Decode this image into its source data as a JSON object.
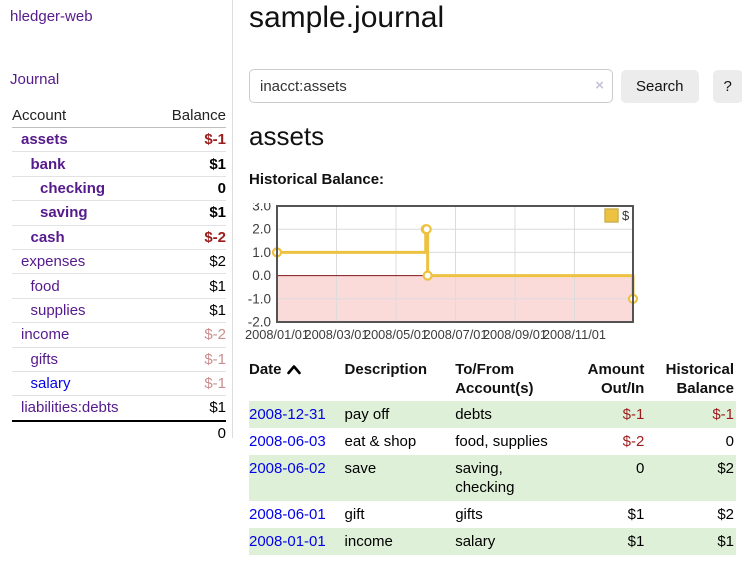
{
  "colors": {
    "link_purple": "#551a8b",
    "link_blue": "#0202e8",
    "negative_dark_red": "#9b1c1c",
    "negative_light_red": "#c98f8f",
    "row_green": "#dff0d8",
    "accent_gold": "#edc240"
  },
  "sidebar": {
    "brand": "hledger-web",
    "nav_journal": "Journal",
    "table": {
      "account_header": "Account",
      "balance_header": "Balance",
      "rows": [
        {
          "name": "assets",
          "depth": 0,
          "bold": true,
          "link": "purple",
          "balance": "$-1",
          "neg": "dark"
        },
        {
          "name": "bank",
          "depth": 1,
          "bold": true,
          "link": "purple",
          "balance": "$1",
          "neg": "none"
        },
        {
          "name": "checking",
          "depth": 2,
          "bold": true,
          "link": "purple",
          "balance": "0",
          "neg": "none"
        },
        {
          "name": "saving",
          "depth": 2,
          "bold": true,
          "link": "purple",
          "balance": "$1",
          "neg": "none"
        },
        {
          "name": "cash",
          "depth": 1,
          "bold": true,
          "link": "purple",
          "balance": "$-2",
          "neg": "dark"
        },
        {
          "name": "expenses",
          "depth": 0,
          "bold": false,
          "link": "purple",
          "balance": "$2",
          "neg": "none"
        },
        {
          "name": "food",
          "depth": 1,
          "bold": false,
          "link": "purple",
          "balance": "$1",
          "neg": "none"
        },
        {
          "name": "supplies",
          "depth": 1,
          "bold": false,
          "link": "purple",
          "balance": "$1",
          "neg": "none"
        },
        {
          "name": "income",
          "depth": 0,
          "bold": false,
          "link": "purple",
          "balance": "$-2",
          "neg": "light"
        },
        {
          "name": "gifts",
          "depth": 1,
          "bold": false,
          "link": "purple",
          "balance": "$-1",
          "neg": "light"
        },
        {
          "name": "salary",
          "depth": 1,
          "bold": false,
          "link": "blue",
          "balance": "$-1",
          "neg": "light"
        },
        {
          "name": "liabilities:debts",
          "depth": 0,
          "bold": false,
          "link": "purple",
          "balance": "$1",
          "neg": "none"
        }
      ],
      "total": "0"
    }
  },
  "header": {
    "title": "sample.journal"
  },
  "search": {
    "value": "inacct:assets",
    "clear_icon": "×",
    "button_label": "Search",
    "help_label": "?"
  },
  "account_page": {
    "heading": "assets",
    "chart_label": "Historical Balance:"
  },
  "chart_data": {
    "type": "line",
    "step": true,
    "title": "Historical Balance",
    "series": [
      {
        "name": "$",
        "color": "#edc240",
        "points": [
          [
            "2008-01-01",
            1
          ],
          [
            "2008-06-01",
            2
          ],
          [
            "2008-06-02",
            2
          ],
          [
            "2008-06-03",
            0
          ],
          [
            "2008-12-31",
            -1
          ]
        ]
      }
    ],
    "ylim": [
      -2,
      3
    ],
    "yticks": [
      3.0,
      2.0,
      1.0,
      0.0,
      -1.0,
      -2.0
    ],
    "xticks": [
      "2008/01/01",
      "2008/03/01",
      "2008/05/01",
      "2008/07/01",
      "2008/09/01",
      "2008/11/01"
    ],
    "grid": true,
    "legend_position": "top-right",
    "legend_label": "$",
    "negative_region_fill": "#fbdada",
    "zero_line_color": "#801515",
    "border_color": "#545454",
    "gridline_color": "#dcdcdc",
    "tick_label_color": "#3c3c3c"
  },
  "register": {
    "columns": {
      "date": [
        "Date"
      ],
      "description": [
        "Description"
      ],
      "account": [
        "To/From",
        "Account(s)"
      ],
      "amount": [
        "Amount",
        "Out/In"
      ],
      "balance": [
        "Historical",
        "Balance"
      ]
    },
    "sort_icon": "chevron-up",
    "rows": [
      {
        "date": "2008-12-31",
        "description": "pay off",
        "accounts": [
          "debts"
        ],
        "amount": "$-1",
        "amount_neg": true,
        "balance": "$-1",
        "balance_neg": true,
        "shaded": true
      },
      {
        "date": "2008-06-03",
        "description": "eat & shop",
        "accounts": [
          "food, supplies"
        ],
        "amount": "$-2",
        "amount_neg": true,
        "balance": "0",
        "balance_neg": false,
        "shaded": false
      },
      {
        "date": "2008-06-02",
        "description": "save",
        "accounts": [
          "saving,",
          "checking"
        ],
        "amount": "0",
        "amount_neg": false,
        "balance": "$2",
        "balance_neg": false,
        "shaded": true
      },
      {
        "date": "2008-06-01",
        "description": "gift",
        "accounts": [
          "gifts"
        ],
        "amount": "$1",
        "amount_neg": false,
        "balance": "$2",
        "balance_neg": false,
        "shaded": false
      },
      {
        "date": "2008-01-01",
        "description": "income",
        "accounts": [
          "salary"
        ],
        "amount": "$1",
        "amount_neg": false,
        "balance": "$1",
        "balance_neg": false,
        "shaded": true
      }
    ]
  }
}
